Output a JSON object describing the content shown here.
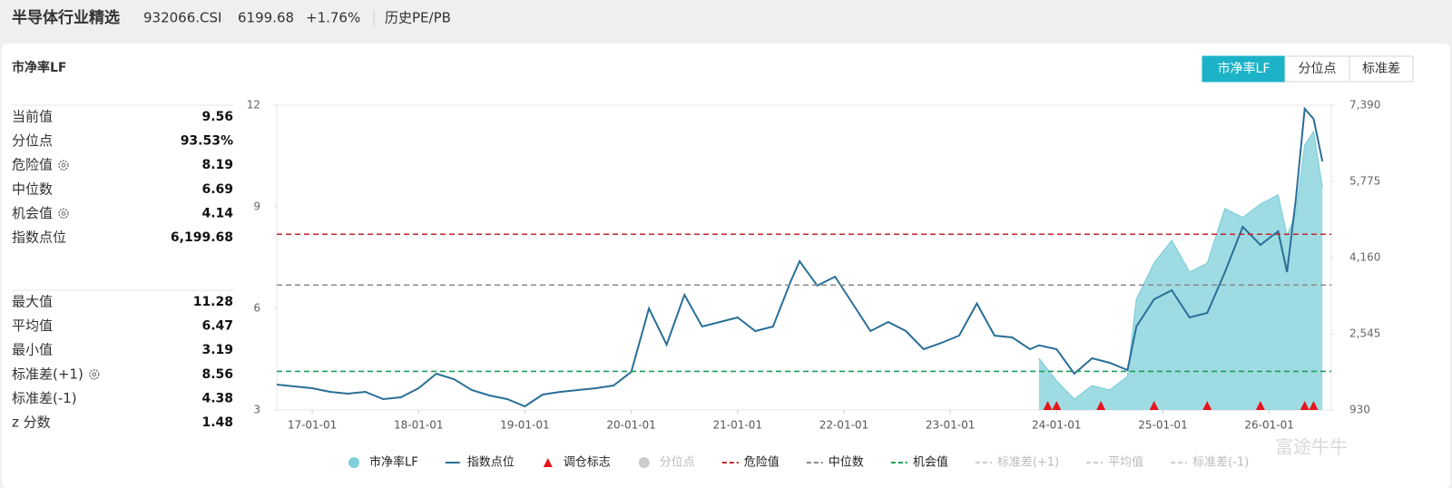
{
  "header": {
    "title": "半导体行业精选",
    "code": "932066.CSI",
    "price": "6199.68",
    "change": "+1.76%",
    "tab": "历史PE/PB"
  },
  "panel": {
    "title": "市净率LF",
    "buttons": [
      "市净率LF",
      "分位点",
      "标准差"
    ],
    "active_button": 0
  },
  "stats_groups": [
    [
      {
        "label": "当前值",
        "value": "9.56"
      },
      {
        "label": "分位点",
        "value": "93.53%"
      },
      {
        "label": "危险值",
        "value": "8.19"
      },
      {
        "label": "中位数",
        "value": "6.69"
      },
      {
        "label": "机会值",
        "value": "4.14"
      },
      {
        "label": "指数点位",
        "value": "6,199.68"
      }
    ],
    [
      {
        "label": "最大值",
        "value": "11.28"
      },
      {
        "label": "平均值",
        "value": "6.47"
      },
      {
        "label": "最小值",
        "value": "3.19"
      },
      {
        "label": "标准差(+1)",
        "value": "8.56"
      },
      {
        "label": "标准差(-1)",
        "value": "4.38"
      },
      {
        "label": "z 分数",
        "value": "1.48"
      }
    ]
  ],
  "chart_data": {
    "type": "line",
    "x": [
      "16-09-01",
      "16-11-01",
      "17-01-01",
      "17-03-01",
      "17-05-01",
      "17-07-01",
      "17-09-01",
      "17-11-01",
      "18-01-01",
      "18-03-01",
      "18-05-01",
      "18-07-01",
      "18-09-01",
      "18-11-01",
      "19-01-01",
      "19-03-01",
      "19-05-01",
      "19-07-01",
      "19-09-01",
      "19-11-01",
      "20-01-01",
      "20-03-01",
      "20-05-01",
      "20-07-01",
      "20-09-01",
      "20-11-01",
      "21-01-01",
      "21-03-01",
      "21-05-01",
      "21-07-01",
      "21-08-01",
      "21-10-01",
      "21-12-01",
      "22-02-01",
      "22-04-01",
      "22-06-01",
      "22-08-01",
      "22-10-01",
      "22-12-01",
      "23-02-01",
      "23-04-01",
      "23-06-01",
      "23-08-01",
      "23-10-01",
      "23-11-01",
      "24-01-01",
      "24-03-01",
      "24-05-01",
      "24-07-01",
      "24-09-01",
      "24-10-01",
      "24-12-01",
      "25-02-01",
      "25-04-01",
      "25-06-01",
      "25-08-01",
      "25-10-01",
      "25-12-01",
      "26-02-01",
      "26-03-01",
      "26-04-01",
      "26-05-01",
      "26-06-01",
      "26-07-01"
    ],
    "series": [
      {
        "name": "市净率LF",
        "color": "#7fcfd9",
        "kind": "area",
        "values": [
          null,
          null,
          null,
          null,
          null,
          null,
          null,
          null,
          null,
          null,
          null,
          null,
          null,
          null,
          null,
          null,
          null,
          null,
          null,
          null,
          null,
          null,
          null,
          null,
          null,
          null,
          null,
          null,
          null,
          null,
          null,
          null,
          null,
          null,
          null,
          null,
          null,
          null,
          null,
          null,
          null,
          null,
          null,
          null,
          4.53,
          3.86,
          3.32,
          3.72,
          3.59,
          3.99,
          6.27,
          7.34,
          8.01,
          7.07,
          7.34,
          8.95,
          8.68,
          9.08,
          9.35,
          8.14,
          8.81,
          10.82,
          11.22,
          9.56
        ]
      },
      {
        "name": "指数点位",
        "color": "#2a6f97",
        "kind": "line",
        "axis": "y2",
        "values": [
          1468,
          1430,
          1392,
          1315,
          1276,
          1315,
          1161,
          1199,
          1392,
          1699,
          1584,
          1353,
          1238,
          1161,
          1007,
          1257,
          1315,
          1353,
          1392,
          1449,
          1738,
          3084,
          2315,
          3372,
          2699,
          2795,
          2891,
          2603,
          2699,
          3661,
          4084,
          3565,
          3757,
          3180,
          2603,
          2795,
          2603,
          2218,
          2353,
          2507,
          3188,
          2507,
          2468,
          2218,
          2300,
          2218,
          1699,
          2026,
          1930,
          1776,
          2699,
          3276,
          3468,
          2891,
          2987,
          3853,
          4814,
          4430,
          4718,
          3853,
          5392,
          7315,
          7100,
          6200
        ]
      }
    ],
    "markers": {
      "name": "调仓标志",
      "color": "#e8141b",
      "x": [
        "23-12-01",
        "24-01-01",
        "24-06-01",
        "24-12-01",
        "25-06-01",
        "25-12-01",
        "26-05-01",
        "26-06-01"
      ]
    },
    "reference_lines": [
      {
        "name": "危险值",
        "value": 8.19,
        "color": "#c0262d"
      },
      {
        "name": "中位数",
        "value": 6.69,
        "color": "#8a8a8a"
      },
      {
        "name": "机会值",
        "value": 4.14,
        "color": "#1e9e5a"
      }
    ],
    "hidden_series": [
      {
        "name": "分位点",
        "color": "#cccccc"
      },
      {
        "name": "标准差(+1)",
        "color": "#cccccc"
      },
      {
        "name": "平均值",
        "color": "#cccccc"
      },
      {
        "name": "标准差(-1)",
        "color": "#cccccc"
      }
    ],
    "xlim": [
      "16-09-01",
      "26-08-01"
    ],
    "xticks": [
      "17-01-01",
      "18-01-01",
      "19-01-01",
      "20-01-01",
      "21-01-01",
      "22-01-01",
      "23-01-01",
      "24-01-01",
      "25-01-01",
      "26-01-01"
    ],
    "ylim": [
      3,
      12
    ],
    "yticks": [
      3,
      6,
      9,
      12
    ],
    "y2lim": [
      930,
      7390
    ],
    "y2ticks": [
      930,
      {
        "value": 2545,
        "label": "2,545"
      },
      {
        "value": 4160,
        "label": "4,160"
      },
      {
        "value": 5775,
        "label": "5,775"
      },
      {
        "value": 7390,
        "label": "7,390"
      }
    ]
  },
  "watermark": "富途牛牛"
}
